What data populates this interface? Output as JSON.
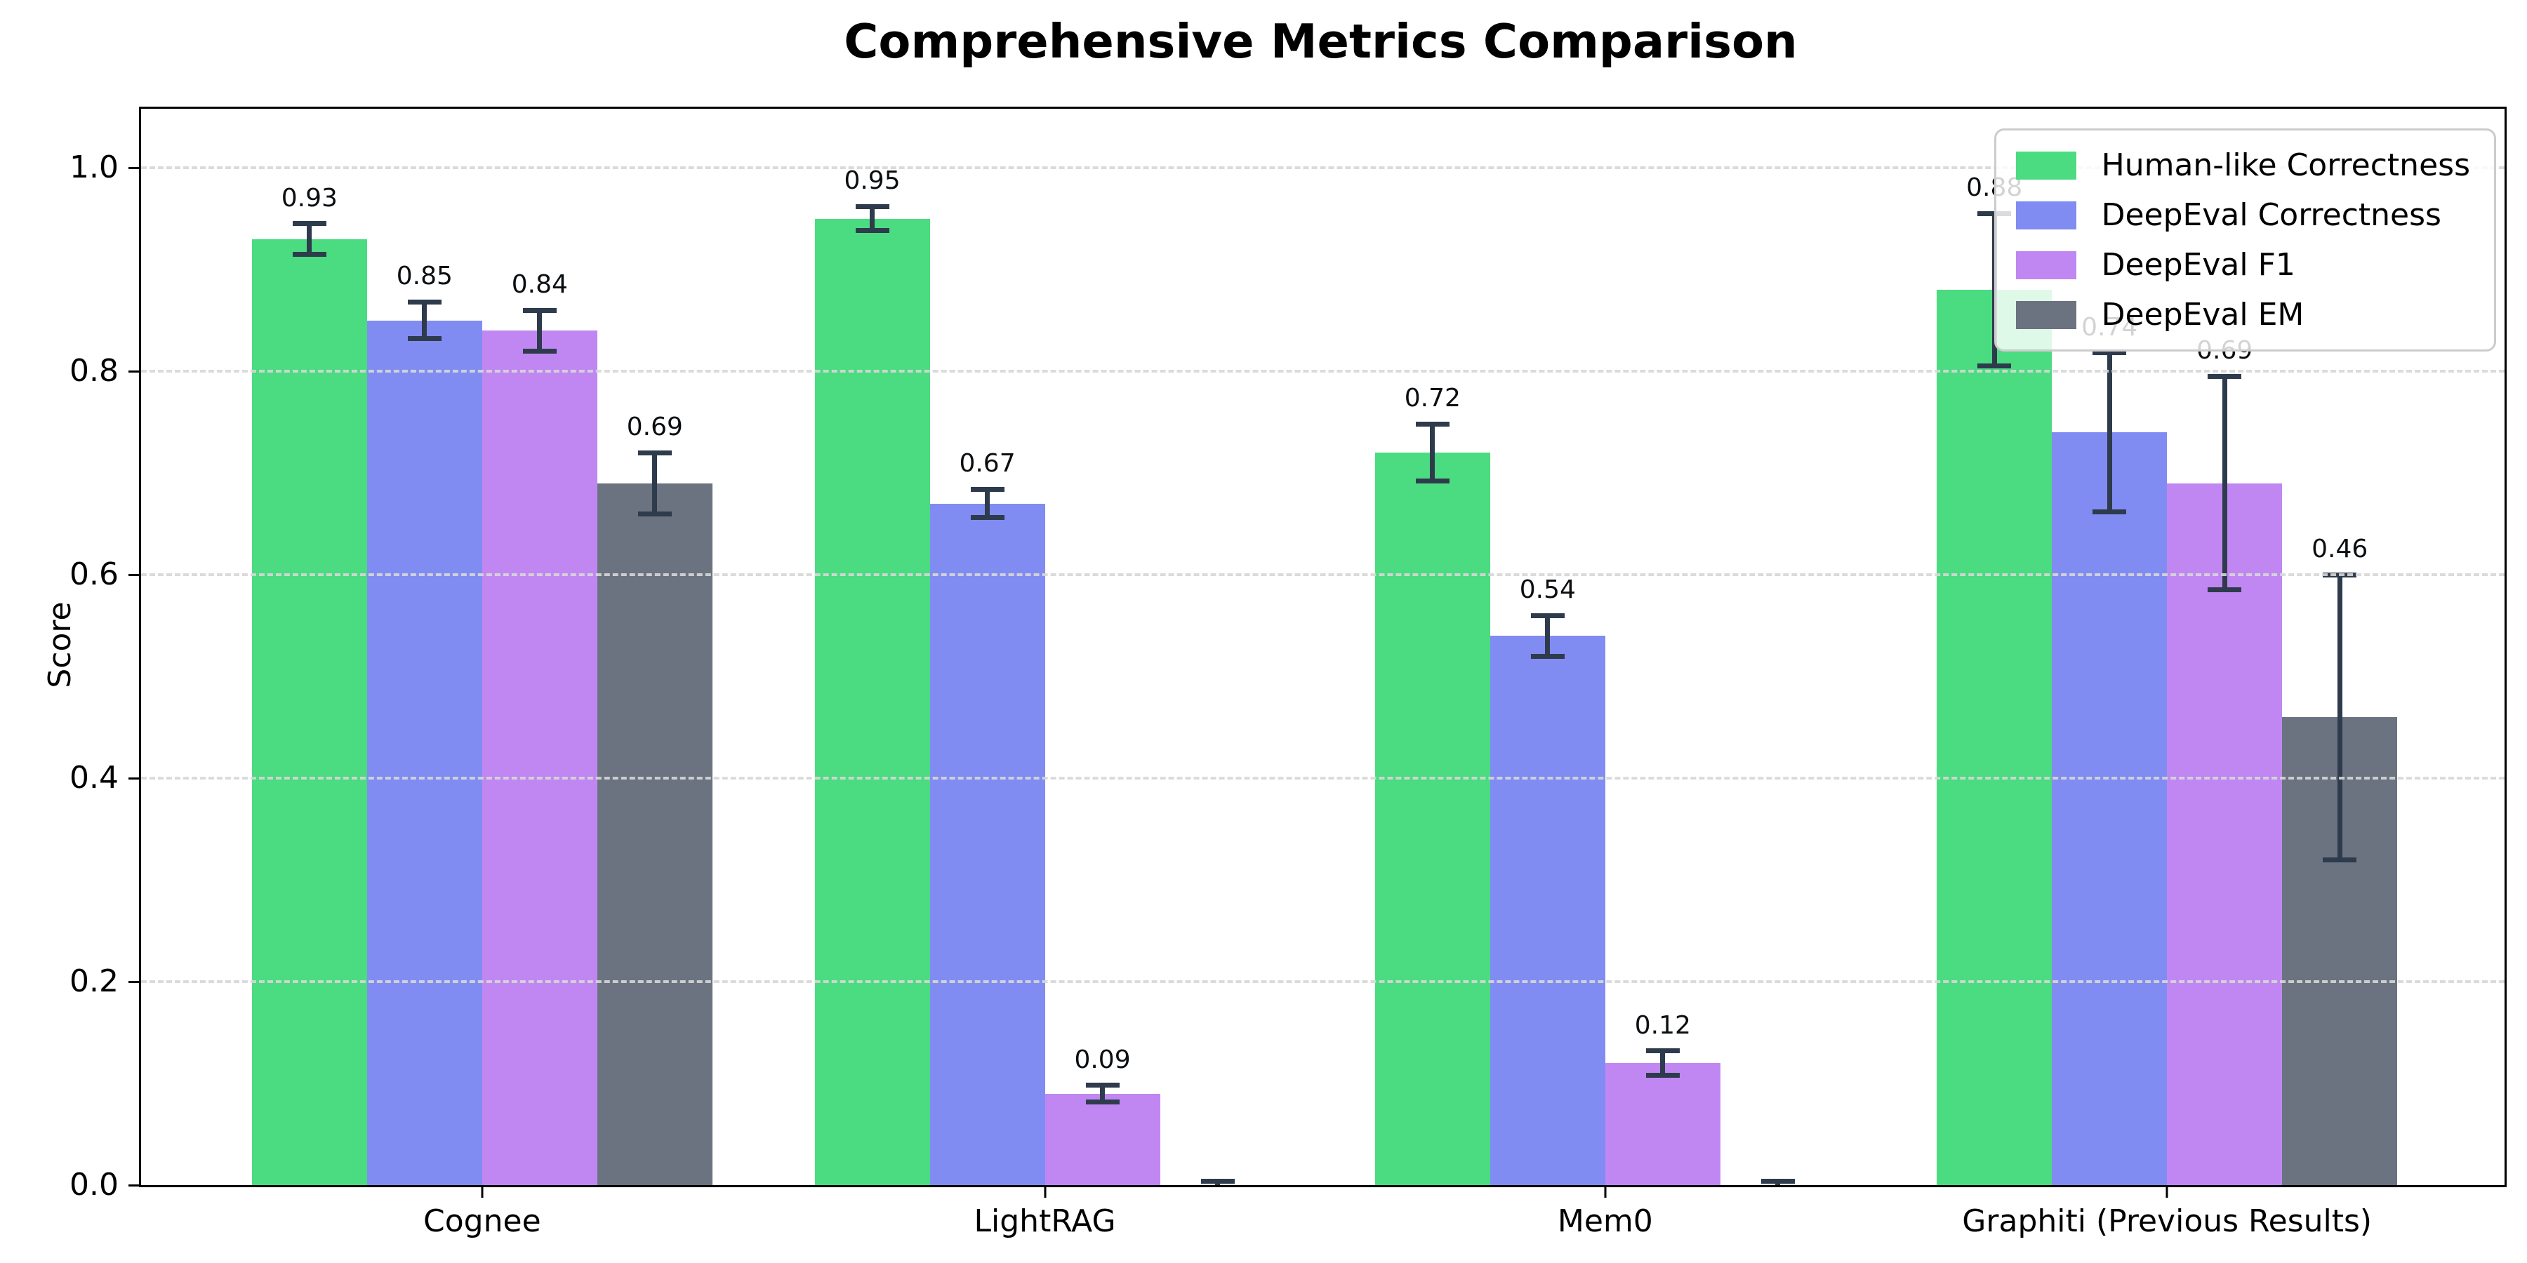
{
  "figure": {
    "title": "Comprehensive Metrics Comparison"
  },
  "chart_data": {
    "type": "bar",
    "title": "Comprehensive Metrics Comparison",
    "xlabel": "",
    "ylabel": "Score",
    "ylim": [
      0.0,
      1.058
    ],
    "yticks": [
      "0.0",
      "0.2",
      "0.4",
      "0.6",
      "0.8",
      "1.0"
    ],
    "grid": "horizontal dashed gridlines at y ticks, drawn over bars",
    "legend_position": "upper right",
    "error_bar_color": "#2E3B4C",
    "axis_color": "#000000",
    "categories": [
      "Cognee",
      "LightRAG",
      "Mem0",
      "Graphiti (Previous Results)"
    ],
    "series": [
      {
        "name": "Human-like Correctness",
        "color": "#4BDB80",
        "values": [
          0.93,
          0.95,
          0.72,
          0.88
        ],
        "errors": [
          0.015,
          0.012,
          0.028,
          0.075
        ],
        "labels": [
          "0.93",
          "0.95",
          "0.72",
          "0.88"
        ]
      },
      {
        "name": "DeepEval Correctness",
        "color": "#818CF2",
        "values": [
          0.85,
          0.67,
          0.54,
          0.74
        ],
        "errors": [
          0.018,
          0.014,
          0.02,
          0.078
        ],
        "labels": [
          "0.85",
          "0.67",
          "0.54",
          "0.74"
        ]
      },
      {
        "name": "DeepEval F1",
        "color": "#C087F2",
        "values": [
          0.84,
          0.09,
          0.12,
          0.69
        ],
        "errors": [
          0.02,
          0.008,
          0.012,
          0.105
        ],
        "labels": [
          "0.84",
          "0.09",
          "0.12",
          "0.69"
        ]
      },
      {
        "name": "DeepEval EM",
        "color": "#6B7280",
        "values": [
          0.69,
          0.0,
          0.0,
          0.46
        ],
        "errors": [
          0.03,
          0.004,
          0.004,
          0.14
        ],
        "labels": [
          "0.69",
          "",
          "",
          "0.46"
        ]
      }
    ]
  }
}
